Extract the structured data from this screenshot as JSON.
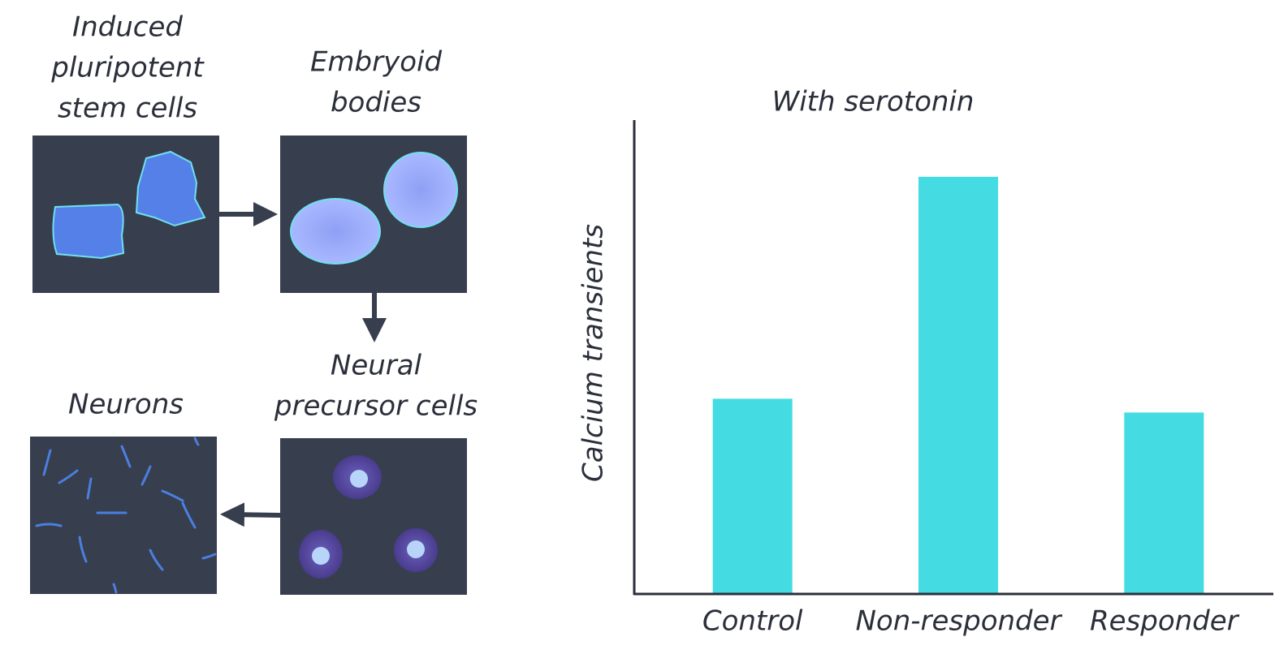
{
  "diagram": {
    "stages": [
      {
        "lines": [
          "Induced",
          "pluripotent",
          "stem cells"
        ]
      },
      {
        "lines": [
          "Embryoid",
          "bodies"
        ]
      },
      {
        "lines": [
          "Neural",
          "precursor cells"
        ]
      },
      {
        "lines": [
          "Neurons"
        ]
      }
    ]
  },
  "chart_data": {
    "type": "bar",
    "title": "With serotonin",
    "y_label": "Calcium transients",
    "categories": [
      "Control",
      "Non-responder",
      "Responder"
    ],
    "values": [
      240,
      514,
      223
    ],
    "color": "#44dbe2",
    "ylim": [
      0,
      584
    ]
  }
}
